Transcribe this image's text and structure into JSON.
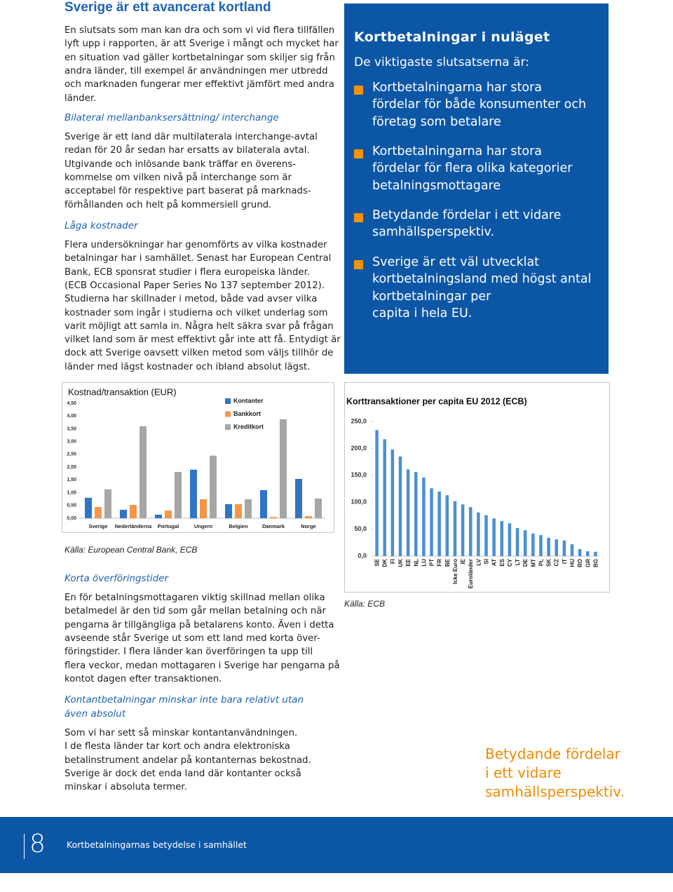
{
  "header": {
    "title": "Sverige är ett avancerat kortland"
  },
  "left_column": {
    "intro": [
      "En slutsats som man kan dra och som vi vid flera tillfällen",
      "lyft upp i rapporten, är att Sverige i mångt och mycket har",
      "en situation vad gäller kortbetalningar som skiljer sig från",
      "andra länder, till exempel är användningen mer utbredd",
      "och marknaden fungerar mer effektivt jämfört med andra",
      "länder."
    ],
    "heading_1": "Bilateral mellanbanksersättning/ interchange",
    "para_1": [
      "Sverige är ett land där multilaterala interchange-avtal",
      "redan för 20 år sedan har ersatts av bilaterala avtal.",
      "Utgivande och inlösande bank träffar en överens-",
      "kommelse om vilken nivå på interchange som är",
      "acceptabel för respektive part baserat på marknads-",
      "förhållanden och helt på kommersiell grund."
    ],
    "heading_2": "Låga kostnader",
    "para_2": [
      "Flera undersökningar har genomförts av vilka kostnader",
      "betalningar har i samhället. Senast har European Central",
      "Bank, ECB sponsrat studier i flera europeiska länder.",
      "(ECB Occasional Paper Series No 137 september 2012).",
      "Studierna har skillnader i metod, både vad avser vilka",
      "kostnader som ingår i studierna och vilket underlag som",
      "varit möjligt att samla in. Några helt säkra svar på frågan",
      "vilket land som är mest effektivt går inte att få. Entydigt är",
      "dock att Sverige oavsett vilken metod som väljs tillhör de",
      "länder med lägst kostnader och ibland absolut lägst."
    ],
    "source": "Källa: European Central Bank, ECB",
    "heading_3": "Korta överföringstider",
    "para_3": [
      "En för betalningsmottagaren viktig skillnad mellan olika",
      "betalmedel är den tid som går mellan betalning och när",
      "pengarna är tillgängliga på betalarens konto. Även i detta",
      "avseende står Sverige ut som ett land med korta över-",
      "föringstider. I flera länder kan överföringen ta upp till",
      "flera veckor, medan mottagaren i Sverige har pengarna på",
      "kontot dagen efter transaktionen."
    ],
    "heading_4": [
      "Kontantbetalningar minskar inte bara relativt utan",
      "även absolut"
    ],
    "para_4": [
      "Som vi har sett så minskar kontantanvändningen.",
      "I de flesta länder tar kort och andra elektroniska",
      "betalinstrument andelar på kontanternas bekostnad.",
      "Sverige är dock det enda land där kontanter också",
      "minskar i absoluta termer."
    ]
  },
  "sidebar": {
    "title": "Kortbetalningar i nuläget",
    "subtitle": "De viktigaste slutsatserna är:",
    "bullets": [
      [
        "Kortbetalningarna har stora",
        "fördelar för både konsumenter och",
        "företag som betalare"
      ],
      [
        "Kortbetalningarna har stora",
        "fördelar för flera olika kategorier",
        "betalningsmottagare"
      ],
      [
        "Betydande fördelar i ett vidare",
        "samhällsperspektiv."
      ],
      [
        "Sverige är ett väl utvecklat",
        "kortbetalningsland med högst antal",
        "kortbetalningar per",
        "capita i hela EU."
      ]
    ]
  },
  "chart_data": [
    {
      "type": "bar",
      "title": "Kostnad/transaktion (EUR)",
      "categories": [
        "Sverige",
        "Nederländerna",
        "Portugal",
        "Ungern",
        "Belgien",
        "Danmark",
        "Norge"
      ],
      "series": [
        {
          "name": "Kontanter",
          "color": "#2e75c8",
          "values": [
            0.8,
            0.33,
            0.14,
            1.9,
            0.55,
            1.1,
            1.54
          ]
        },
        {
          "name": "Bankkort",
          "color": "#f79646",
          "values": [
            0.44,
            0.52,
            0.3,
            0.74,
            0.55,
            0.05,
            0.08
          ]
        },
        {
          "name": "Kreditkort",
          "color": "#a6a6a6",
          "values": [
            1.13,
            3.6,
            1.81,
            2.45,
            0.74,
            3.87,
            0.77
          ]
        }
      ],
      "ylim": [
        0,
        4.5
      ],
      "yticks": [
        {
          "value": 0,
          "label": "0,00"
        },
        {
          "value": 0.5,
          "label": "0,50"
        },
        {
          "value": 1,
          "label": "1,00"
        },
        {
          "value": 1.5,
          "label": "1,50"
        },
        {
          "value": 2,
          "label": "2,00"
        },
        {
          "value": 2.5,
          "label": "2,50"
        },
        {
          "value": 3,
          "label": "3,00"
        },
        {
          "value": 3.5,
          "label": "3,50"
        },
        {
          "value": 4,
          "label": "4,00"
        },
        {
          "value": 4.5,
          "label": "4,50"
        }
      ],
      "legend": "top-right"
    },
    {
      "type": "bar",
      "title": "Korttransaktioner per capita EU 2012 (ECB)",
      "categories": [
        "SE",
        "DK",
        "FI",
        "UK",
        "EE",
        "NL",
        "LU",
        "PT",
        "FR",
        "BE",
        "Icke Euro",
        "IE",
        "Euroländer",
        "LV",
        "SI",
        "AT",
        "ES",
        "CY",
        "LT",
        "DE",
        "MT",
        "PL",
        "SK",
        "CZ",
        "IT",
        "HU",
        "RO",
        "GR",
        "BG"
      ],
      "values": [
        234,
        217,
        198,
        185,
        161,
        156,
        146,
        126,
        120,
        113,
        102,
        96,
        91,
        81,
        76,
        70,
        65,
        61,
        52,
        48,
        42,
        39,
        34,
        31,
        29,
        22,
        13,
        9,
        8
      ],
      "color": "#4a8fd4",
      "ylim": [
        0,
        250
      ],
      "yticks": [
        {
          "value": 0,
          "label": "0,0"
        },
        {
          "value": 50,
          "label": "50,0"
        },
        {
          "value": 100,
          "label": "100,0"
        },
        {
          "value": 150,
          "label": "150,0"
        },
        {
          "value": 200,
          "label": "200,0"
        },
        {
          "value": 250,
          "label": "250,0"
        }
      ]
    }
  ],
  "chart_source": "Källa: ECB",
  "callout": [
    "Betydande fördelar",
    "i ett vidare",
    "samhällsperspektiv."
  ],
  "footer": {
    "page_number": "8",
    "text": "Kortbetalningarnas betydelse i samhället"
  }
}
